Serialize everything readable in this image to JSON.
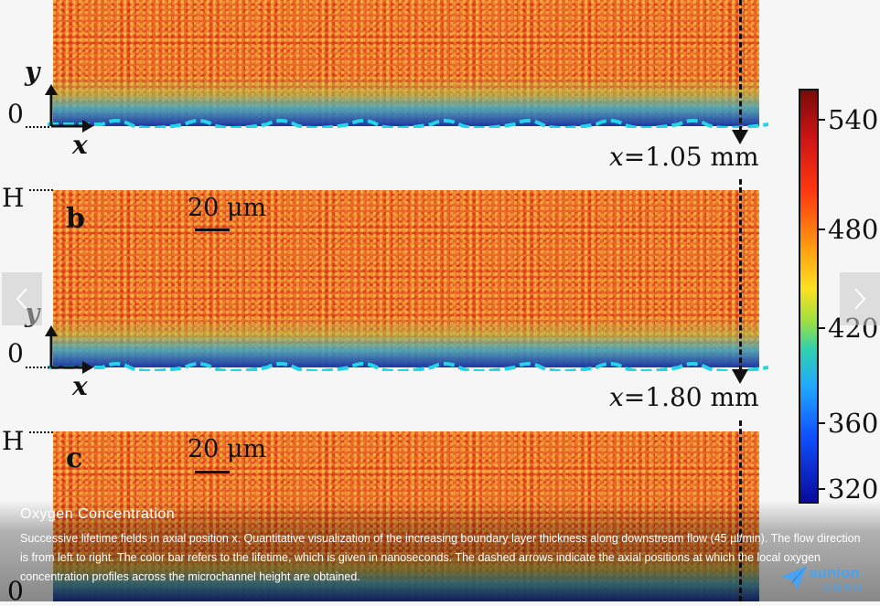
{
  "figure": {
    "axis_y": "y",
    "axis_x": "x",
    "tick_zero": "0",
    "tick_H": "H",
    "panel_b": "b",
    "panel_c": "c",
    "scale_bar_label": "20 μm",
    "pos1": {
      "var": "x",
      "value": "=1.05 mm"
    },
    "pos2": {
      "var": "x",
      "value": "=1.80 mm"
    }
  },
  "colorbar": {
    "labels": [
      "540",
      "480",
      "420",
      "360",
      "320"
    ],
    "colors": [
      "#7a0a0a",
      "#ff3a10",
      "#ffe020",
      "#30d0b0",
      "#1050ff",
      "#0a0a9a"
    ]
  },
  "caption": {
    "title": "Oxygen Concentration",
    "text": "Successive lifetime fields in axial position x. Quantitative visualization of the increasing boundary layer thickness along downstream flow (45 µl/min). The flow direction is from left to right. The color bar refers to the lifetime, which is given in nanoseconds. The dashed arrows indicate the axial positions at which the local oxygen concentration profiles across the microchannel height are obtained."
  },
  "navigation": {
    "prev_icon": "chevron-left-icon",
    "next_icon": "chevron-right-icon"
  },
  "logo": {
    "text": "aunion",
    "sub": "艾瑞光电"
  }
}
